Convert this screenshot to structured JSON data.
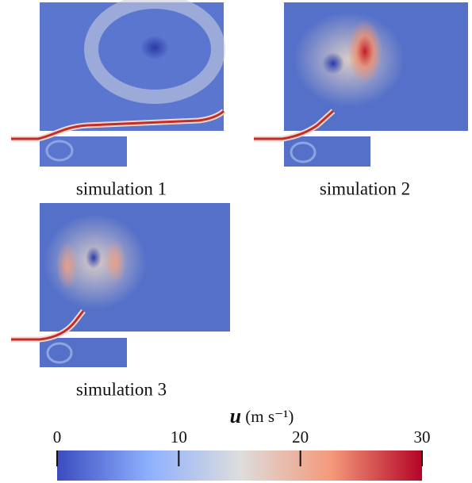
{
  "panels": [
    {
      "label": "simulation 1"
    },
    {
      "label": "simulation 2"
    },
    {
      "label": "simulation 3"
    }
  ],
  "colorbar": {
    "symbol": "u",
    "unit": "(m s⁻¹)",
    "lim": [
      0,
      30
    ],
    "ticks": [
      0,
      10,
      20,
      30
    ],
    "colors": [
      "#3b4cc0",
      "#8db0fe",
      "#dddddd",
      "#f49a7b",
      "#b40426"
    ]
  }
}
